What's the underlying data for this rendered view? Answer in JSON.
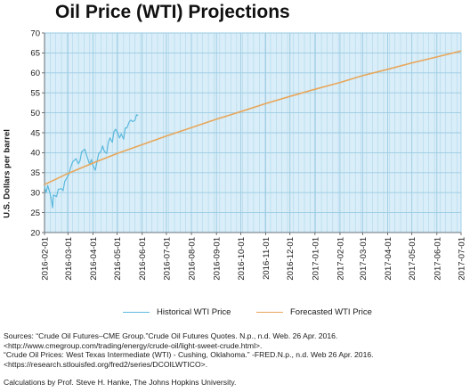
{
  "title": "Oil Price (WTI) Projections",
  "colors": {
    "historical": "#5bb8de",
    "forecast": "#e8a65a",
    "plot_bg": "#d9eef8",
    "grid": "#9ccbe3"
  },
  "chart_data": {
    "type": "line",
    "title": "Oil Price (WTI) Projections",
    "xlabel": "",
    "ylabel": "U.S. Dollars per barrel",
    "ylim": [
      20,
      70
    ],
    "yticks": [
      20,
      25,
      30,
      35,
      40,
      45,
      50,
      55,
      60,
      65,
      70
    ],
    "xlim": [
      "2016-02-01",
      "2017-07-01"
    ],
    "xticks": [
      "2016-02-01",
      "2016-03-01",
      "2016-04-01",
      "2016-05-01",
      "2016-06-01",
      "2016-07-01",
      "2016-08-01",
      "2016-09-01",
      "2016-10-01",
      "2016-11-01",
      "2016-12-01",
      "2017-01-01",
      "2017-02-01",
      "2017-03-01",
      "2017-04-01",
      "2017-05-01",
      "2017-06-01",
      "2017-07-01"
    ],
    "grid": true,
    "legend_position": "bottom",
    "series": [
      {
        "name": "Historical WTI Price",
        "x": [
          "2016-02-01",
          "2016-02-03",
          "2016-02-05",
          "2016-02-08",
          "2016-02-10",
          "2016-02-11",
          "2016-02-12",
          "2016-02-16",
          "2016-02-18",
          "2016-02-22",
          "2016-02-24",
          "2016-02-26",
          "2016-02-29",
          "2016-03-02",
          "2016-03-04",
          "2016-03-07",
          "2016-03-09",
          "2016-03-11",
          "2016-03-14",
          "2016-03-16",
          "2016-03-18",
          "2016-03-22",
          "2016-03-24",
          "2016-03-28",
          "2016-03-30",
          "2016-04-01",
          "2016-04-04",
          "2016-04-06",
          "2016-04-08",
          "2016-04-11",
          "2016-04-13",
          "2016-04-15",
          "2016-04-18",
          "2016-04-20",
          "2016-04-22",
          "2016-04-25",
          "2016-04-27",
          "2016-04-29",
          "2016-05-02",
          "2016-05-04",
          "2016-05-06",
          "2016-05-09",
          "2016-05-11",
          "2016-05-13",
          "2016-05-16",
          "2016-05-18",
          "2016-05-20",
          "2016-05-23",
          "2016-05-25",
          "2016-05-27"
        ],
        "values": [
          31.5,
          30.0,
          31.8,
          29.7,
          27.5,
          26.2,
          29.4,
          29.0,
          30.8,
          31.0,
          30.5,
          32.8,
          33.8,
          34.5,
          36.0,
          37.8,
          38.1,
          38.5,
          37.2,
          38.0,
          40.2,
          40.9,
          39.4,
          37.0,
          38.3,
          36.8,
          35.6,
          37.8,
          39.7,
          40.4,
          41.7,
          40.4,
          39.8,
          42.6,
          43.7,
          42.6,
          45.3,
          45.9,
          44.8,
          43.7,
          44.7,
          43.4,
          46.2,
          46.2,
          47.7,
          48.2,
          47.8,
          48.1,
          49.5,
          49.3
        ]
      },
      {
        "name": "Forecasted WTI Price",
        "x": [
          "2016-02-01",
          "2016-03-01",
          "2016-04-01",
          "2016-05-01",
          "2016-06-01",
          "2016-07-01",
          "2016-08-01",
          "2016-09-01",
          "2016-10-01",
          "2016-11-01",
          "2016-12-01",
          "2017-01-01",
          "2017-02-01",
          "2017-03-01",
          "2017-04-01",
          "2017-05-01",
          "2017-06-01",
          "2017-07-01"
        ],
        "values": [
          32.0,
          34.8,
          37.4,
          39.8,
          42.0,
          44.2,
          46.3,
          48.4,
          50.3,
          52.3,
          54.1,
          55.9,
          57.6,
          59.3,
          60.9,
          62.5,
          64.0,
          65.5
        ]
      }
    ]
  },
  "legend": {
    "historical_label": "Historical WTI Price",
    "forecast_label": "Forecasted WTI Price"
  },
  "notes": {
    "line1": "Sources: “Crude Oil Futures–CME Group.”Crude Oil Futures Quotes. N.p., n.d. Web. 26 Apr. 2016.",
    "line2": "<http://www.cmegroup.com/trading/energy/crude-oil/light-sweet-crude.html>.",
    "line3": "“Crude Oil Prices: West Texas Intermediate (WTI) - Cushing, Oklahoma.” -FRED.N.p., n.d. Web 26 Apr. 2016.",
    "line4": "<https://research.stlouisfed.org/fred2/series/DCOILWTICO>.",
    "line5": "Calculations by Prof. Steve H. Hanke, The Johns Hopkins University."
  }
}
